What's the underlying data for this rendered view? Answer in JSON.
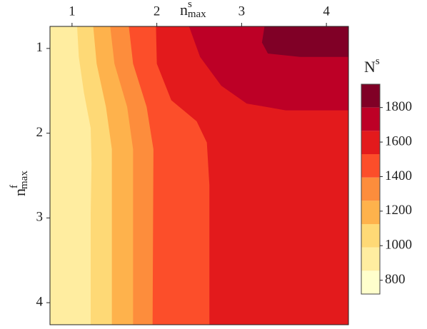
{
  "chart_data": {
    "type": "contour",
    "x_label": {
      "base": "n",
      "sup": "s",
      "sub": "max"
    },
    "y_label": {
      "base": "n",
      "sup": "f",
      "sub": "max"
    },
    "xlim": [
      0.74,
      4.26
    ],
    "ylim": [
      0.74,
      4.26
    ],
    "y_inverted": true,
    "xticks": [
      1,
      2,
      3,
      4
    ],
    "yticks": [
      1,
      2,
      3,
      4
    ],
    "contours": [
      {
        "level": 990,
        "x": [
          1.06,
          1.08,
          1.14,
          1.22,
          1.23,
          1.22,
          1.22
        ],
        "y": [
          0.74,
          1.1,
          1.52,
          1.94,
          2.36,
          2.95,
          4.26
        ]
      },
      {
        "level": 1125,
        "x": [
          1.25,
          1.29,
          1.4,
          1.47,
          1.47
        ],
        "y": [
          0.74,
          1.18,
          1.69,
          2.19,
          4.26
        ]
      },
      {
        "level": 1260,
        "x": [
          1.45,
          1.5,
          1.65,
          1.72,
          1.72
        ],
        "y": [
          0.74,
          1.18,
          1.69,
          2.19,
          4.26
        ]
      },
      {
        "level": 1395,
        "x": [
          1.67,
          1.72,
          1.88,
          1.96,
          1.95
        ],
        "y": [
          0.74,
          1.18,
          1.69,
          2.19,
          4.26
        ]
      },
      {
        "level": 1530,
        "x": [
          1.99,
          2.0,
          2.17,
          2.47,
          2.59,
          2.62,
          2.62
        ],
        "y": [
          0.74,
          1.18,
          1.61,
          1.86,
          2.11,
          2.61,
          4.26
        ]
      },
      {
        "level": 1665,
        "x": [
          2.38,
          2.51,
          2.76,
          3.06,
          3.52,
          4.26
        ],
        "y": [
          0.74,
          1.1,
          1.44,
          1.65,
          1.73,
          1.73
        ]
      },
      {
        "level": 1800,
        "x": [
          3.27,
          3.24,
          3.31,
          3.69,
          4.26
        ],
        "y": [
          0.74,
          0.93,
          1.06,
          1.1,
          1.1
        ]
      }
    ],
    "colorbar": {
      "title": {
        "base": "N",
        "sup": "s"
      },
      "levels": [
        720,
        855,
        990,
        1125,
        1260,
        1395,
        1530,
        1665,
        1800,
        1935
      ],
      "colors": [
        "#ffffcc",
        "#ffeda0",
        "#fed976",
        "#feb24c",
        "#fd8d3c",
        "#fc4e2a",
        "#e31a1c",
        "#bd0026",
        "#800026"
      ],
      "ticks": [
        800,
        1000,
        1200,
        1400,
        1600,
        1800
      ]
    }
  }
}
